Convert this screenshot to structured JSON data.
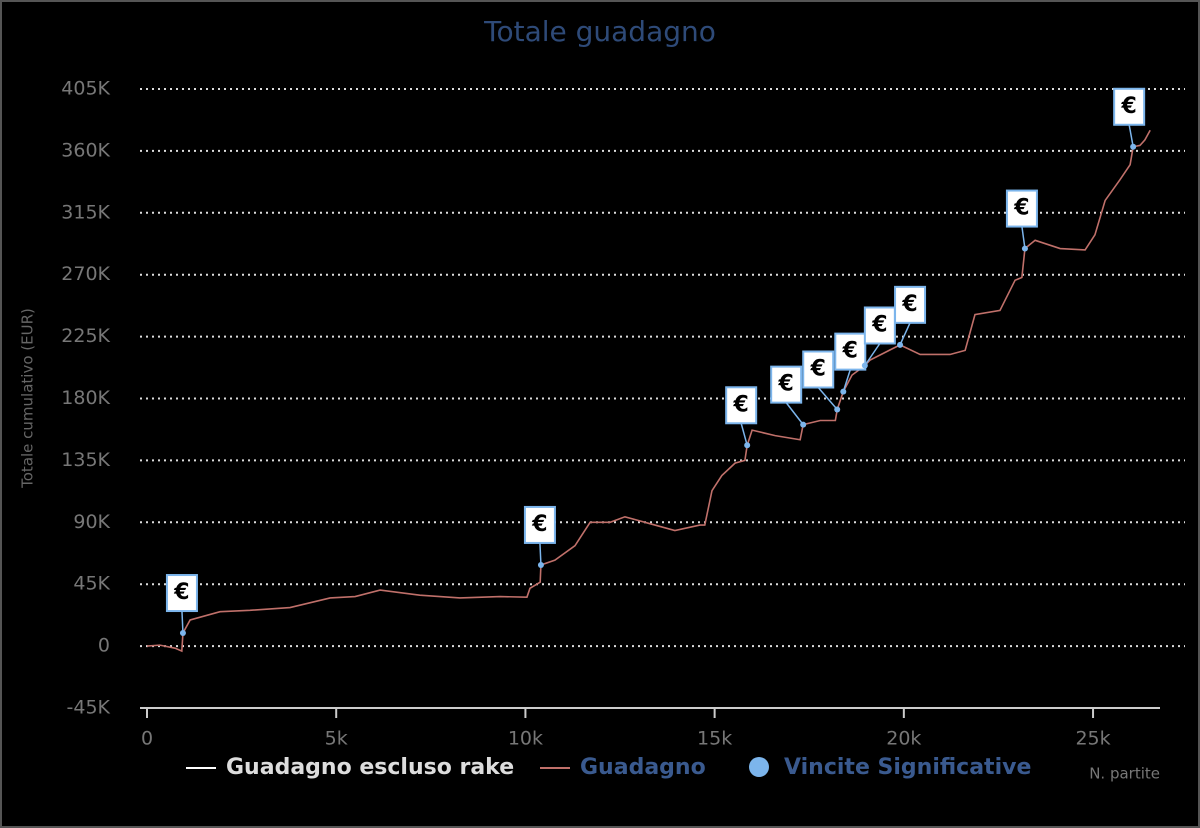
{
  "chart_data": {
    "type": "line",
    "title": "Totale guadagno",
    "y_label": "Totale cumulativo (EUR)",
    "x_label": "N. partite",
    "xlim": [
      -185,
      27430
    ],
    "xticks": [
      0,
      {
        "value": 5000,
        "label": "5k"
      },
      {
        "value": 10000,
        "label": "10k"
      },
      {
        "value": 15000,
        "label": "15k"
      },
      {
        "value": 20000,
        "label": "20k"
      },
      {
        "value": 25000,
        "label": "25k"
      }
    ],
    "ylim": [
      -45000,
      405000
    ],
    "yticks": [
      {
        "value": -45000,
        "label": "-45K"
      },
      0,
      {
        "value": 45000,
        "label": "45K"
      },
      {
        "value": 90000,
        "label": "90K"
      },
      {
        "value": 135000,
        "label": "135K"
      },
      {
        "value": 180000,
        "label": "180K"
      },
      {
        "value": 225000,
        "label": "225K"
      },
      {
        "value": 270000,
        "label": "270K"
      },
      {
        "value": 315000,
        "label": "315K"
      },
      {
        "value": 360000,
        "label": "360K"
      },
      {
        "value": 405000,
        "label": "405K"
      }
    ],
    "grid": true,
    "series": [
      {
        "name": "Guadagno escluso rake",
        "color": "#ffffff"
      },
      {
        "name": "Guadagno",
        "color": "#c0706a",
        "x": [
          0,
          340,
          740,
          920,
          950,
          1140,
          1930,
          2720,
          3780,
          4840,
          5500,
          6160,
          7210,
          8270,
          9330,
          10040,
          10120,
          10390,
          10410,
          10780,
          11310,
          11710,
          12240,
          12630,
          13290,
          13950,
          14610,
          14740,
          14930,
          15190,
          15540,
          15800,
          15860,
          15990,
          16600,
          17260,
          17340,
          17790,
          18190,
          18240,
          18400,
          18630,
          18970,
          19110,
          19900,
          20430,
          21220,
          21620,
          21880,
          22540,
          22940,
          23120,
          23200,
          23470,
          24130,
          24790,
          25050,
          25320,
          25710,
          25980,
          26060,
          26240,
          26370,
          26510
        ],
        "values": [
          0,
          700,
          -1500,
          -3600,
          9500,
          19000,
          25000,
          26000,
          28000,
          35000,
          36000,
          40700,
          37000,
          35000,
          36000,
          35600,
          42000,
          46500,
          59000,
          62500,
          73000,
          90000,
          90000,
          94000,
          89000,
          84000,
          88000,
          88000,
          113000,
          124000,
          133000,
          135000,
          146000,
          157000,
          153000,
          150000,
          161000,
          164000,
          164000,
          172000,
          185000,
          197000,
          204000,
          208000,
          219000,
          212000,
          212000,
          215000,
          241000,
          244000,
          266000,
          268000,
          289000,
          295000,
          289000,
          288000,
          299000,
          324000,
          339000,
          350000,
          363000,
          364000,
          368000,
          375000
        ]
      },
      {
        "name": "Vincite Significative",
        "color": "#7cb5ec",
        "flag_text": "€",
        "x": [
          950,
          10410,
          15860,
          17340,
          18240,
          18400,
          18970,
          19900,
          23200,
          26060
        ],
        "values": [
          9500,
          59000,
          146000,
          161000,
          172000,
          185000,
          204000,
          219000,
          289000,
          363000
        ]
      }
    ]
  }
}
